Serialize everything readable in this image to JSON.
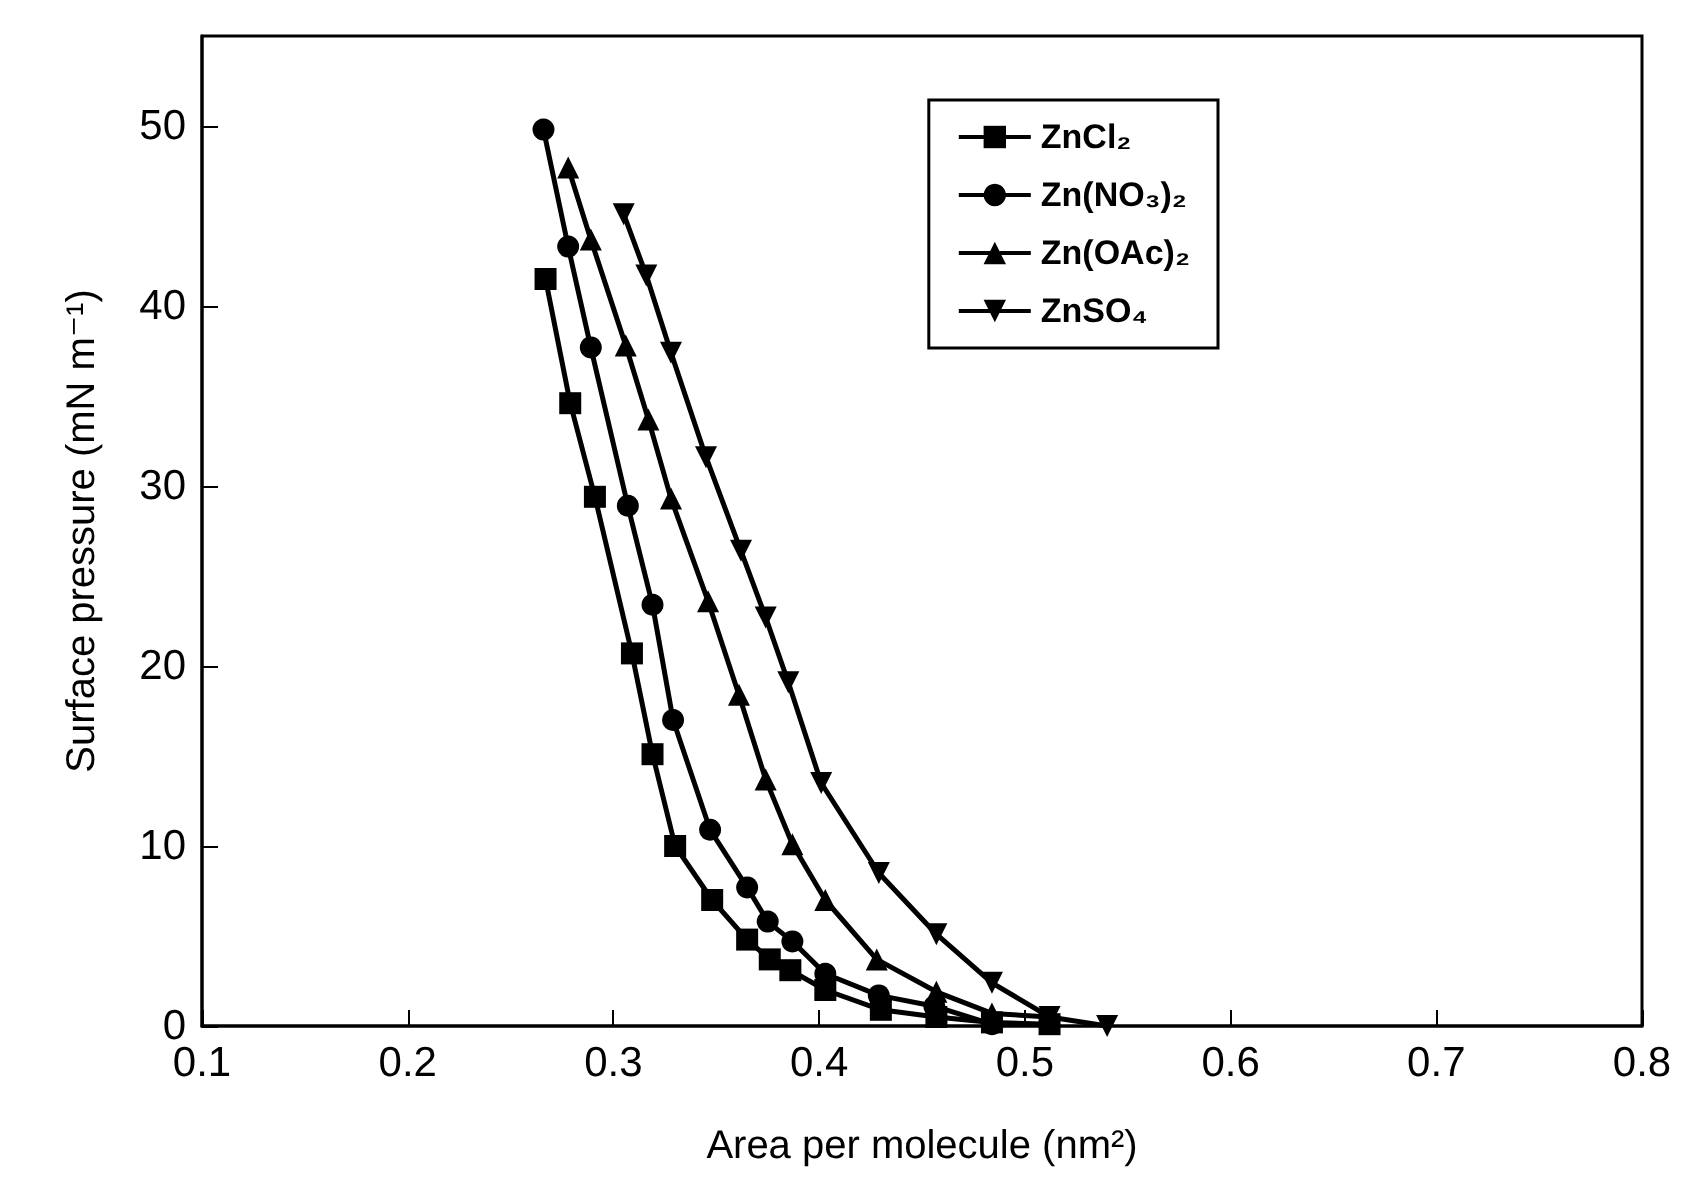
{
  "chart_data": {
    "type": "line",
    "xlabel": "Area per molecule (nm²)",
    "ylabel": "Surface pressure (mN m⁻¹)",
    "xlim": [
      0.1,
      0.8
    ],
    "xticks": [
      0.1,
      0.2,
      0.3,
      0.4,
      0.5,
      0.6,
      0.7,
      0.8
    ],
    "ylim": [
      0,
      55
    ],
    "yticks": [
      0,
      10,
      20,
      30,
      40,
      50
    ],
    "grid": false,
    "legend": "top right",
    "line_style": "solid",
    "series": [
      {
        "name": "ZnCl₂",
        "color": "#000000",
        "marker": "square",
        "x": [
          0.267,
          0.279,
          0.291,
          0.309,
          0.319,
          0.33,
          0.348,
          0.365,
          0.376,
          0.386,
          0.403,
          0.43,
          0.457,
          0.484,
          0.512
        ],
        "values": [
          41.5,
          34.6,
          29.4,
          20.7,
          15.1,
          10.0,
          7.0,
          4.8,
          3.7,
          3.1,
          2.0,
          0.9,
          0.5,
          0.2,
          0.1
        ]
      },
      {
        "name": "Zn(NO₃)₂",
        "color": "#000000",
        "marker": "circle",
        "x": [
          0.266,
          0.278,
          0.289,
          0.307,
          0.319,
          0.329,
          0.347,
          0.365,
          0.375,
          0.387,
          0.403,
          0.429,
          0.456,
          0.484
        ],
        "values": [
          49.8,
          43.3,
          37.7,
          28.9,
          23.4,
          17.0,
          10.9,
          7.7,
          5.8,
          4.7,
          2.9,
          1.7,
          1.1,
          0.1
        ]
      },
      {
        "name": "Zn(OAc)₂",
        "color": "#000000",
        "marker": "triangle",
        "x": [
          0.278,
          0.289,
          0.306,
          0.317,
          0.328,
          0.346,
          0.361,
          0.374,
          0.387,
          0.403,
          0.428,
          0.457,
          0.484,
          0.512
        ],
        "values": [
          47.7,
          43.7,
          37.8,
          33.7,
          29.3,
          23.6,
          18.4,
          13.7,
          10.1,
          7.0,
          3.7,
          1.9,
          0.7,
          0.5
        ]
      },
      {
        "name": "ZnSO₄",
        "color": "#000000",
        "marker": "triangle-down",
        "x": [
          0.305,
          0.316,
          0.328,
          0.345,
          0.362,
          0.374,
          0.385,
          0.401,
          0.429,
          0.457,
          0.484,
          0.512,
          0.54
        ],
        "values": [
          45.1,
          41.7,
          37.4,
          31.6,
          26.4,
          22.7,
          19.1,
          13.5,
          8.5,
          5.1,
          2.4,
          0.5,
          0.0
        ]
      }
    ]
  }
}
